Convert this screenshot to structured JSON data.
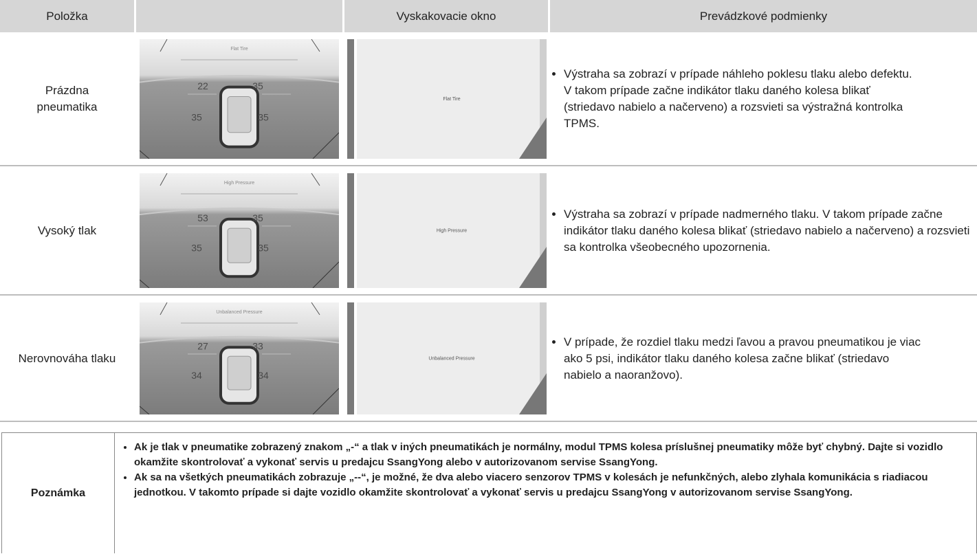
{
  "header": {
    "item": "Položka",
    "popup": "Vyskakovacie okno",
    "conditions": "Prevádzkové podmienky"
  },
  "rows": [
    {
      "item": "Prázdna pneumatika",
      "screen_title": "Flat Tire",
      "pressures": [
        22,
        35,
        35,
        35
      ],
      "popup": "Flat Tire",
      "condition": "Výstraha sa zobrazí v prípade náhleho poklesu tlaku alebo defektu. V takom prípade začne indikátor tlaku daného kolesa blikať (striedavo nabielo a načerveno) a rozsvieti sa výstražná kontrolka TPMS."
    },
    {
      "item": "Vysoký tlak",
      "screen_title": "High Pressure",
      "pressures": [
        53,
        35,
        35,
        35
      ],
      "popup": "High Pressure",
      "condition": "Výstraha sa zobrazí v prípade nadmerného tlaku. V takom prípade začne indikátor tlaku daného kolesa blikať (striedavo nabielo a načerveno) a rozsvieti sa kontrolka všeobecného upozornenia."
    },
    {
      "item": "Nerovnováha tlaku",
      "screen_title": "Unbalanced Pressure",
      "pressures": [
        27,
        33,
        34,
        34
      ],
      "popup": "Unbalanced Pressure",
      "condition": "V prípade, že rozdiel tlaku medzi ľavou a pravou pneumatikou je viac ako 5 psi, indikátor tlaku daného kolesa začne blikať (striedavo nabielo a naoranžovo)."
    }
  ],
  "note": {
    "label": "Poznámka",
    "bullets": [
      "Ak je tlak v pneumatike zobrazený znakom „-“ a tlak v iných pneumatikách je normálny, modul TPMS kolesa príslušnej pneumatiky môže byť chybný. Dajte si vozidlo okamžite skontrolovať a vykonať servis u predajcu SsangYong alebo v autorizovanom servise SsangYong.",
      "Ak sa na všetkých pneumatikách zobrazuje „--“, je možné, že dva alebo viacero senzorov TPMS v kolesách je nefunkčných, alebo zlyhala komunikácia s riadiacou jednotkou. V takomto prípade si dajte vozidlo okamžite skontrolovať a vykonať servis u predajcu SsangYong v autorizovanom servise SsangYong."
    ]
  }
}
